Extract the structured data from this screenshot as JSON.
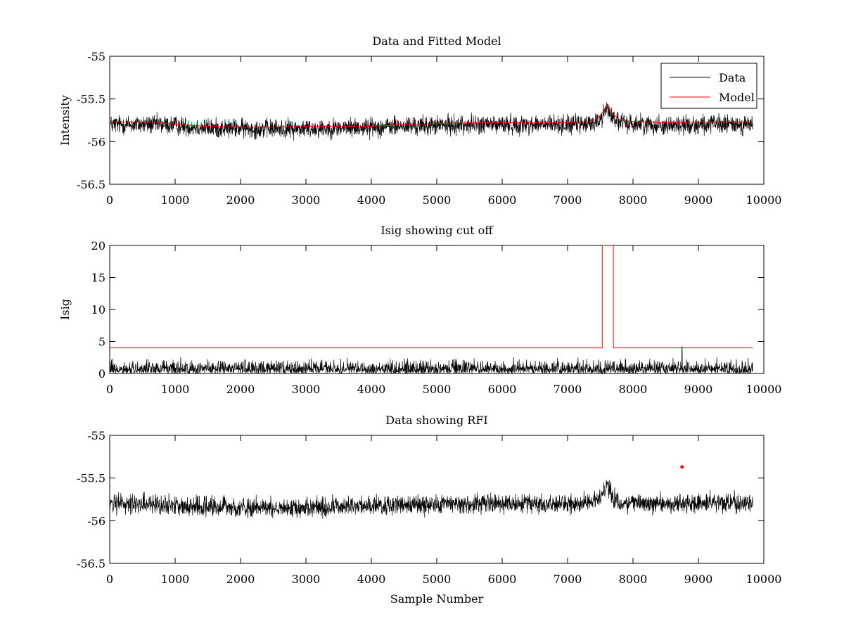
{
  "chart_data": [
    {
      "type": "line",
      "title": "Data and Fitted Model",
      "xlabel": "",
      "ylabel": "Intensity",
      "xlim": [
        0,
        10000
      ],
      "ylim": [
        -56.5,
        -55
      ],
      "xticks": [
        0,
        1000,
        2000,
        3000,
        4000,
        5000,
        6000,
        7000,
        8000,
        9000,
        10000
      ],
      "yticks": [
        -55,
        -55.5,
        -56,
        -56.5
      ],
      "xtick_labels": [
        "0",
        "1000",
        "2000",
        "3000",
        "4000",
        "5000",
        "6000",
        "7000",
        "8000",
        "9000",
        "10000"
      ],
      "ytick_labels": [
        "-55",
        "-55.5",
        "-56",
        "-56.5"
      ],
      "legend": {
        "position": "top-right",
        "entries": [
          {
            "label": "Data",
            "color": "#000000"
          },
          {
            "label": "Model",
            "color": "#ff0000"
          }
        ]
      },
      "series": [
        {
          "name": "Data",
          "color": "#000000",
          "kind": "noise",
          "x_range": [
            0,
            9830
          ],
          "noise_half_range": 0.12,
          "baseline": [
            [
              0,
              -55.8
            ],
            [
              800,
              -55.8
            ],
            [
              1500,
              -55.84
            ],
            [
              2500,
              -55.85
            ],
            [
              3500,
              -55.84
            ],
            [
              4500,
              -55.82
            ],
            [
              5500,
              -55.8
            ],
            [
              6500,
              -55.8
            ],
            [
              7300,
              -55.8
            ],
            [
              7500,
              -55.75
            ],
            [
              7600,
              -55.6
            ],
            [
              7700,
              -55.72
            ],
            [
              7800,
              -55.78
            ],
            [
              8500,
              -55.81
            ],
            [
              9000,
              -55.8
            ],
            [
              9830,
              -55.8
            ]
          ]
        },
        {
          "name": "Model",
          "color": "#ff0000",
          "kind": "line",
          "points": [
            [
              0,
              -55.77
            ],
            [
              600,
              -55.77
            ],
            [
              800,
              -55.78
            ],
            [
              1000,
              -55.8
            ],
            [
              1500,
              -55.82
            ],
            [
              2000,
              -55.83
            ],
            [
              2500,
              -55.83
            ],
            [
              3000,
              -55.82
            ],
            [
              3500,
              -55.82
            ],
            [
              4000,
              -55.82
            ],
            [
              4500,
              -55.8
            ],
            [
              5000,
              -55.79
            ],
            [
              5500,
              -55.78
            ],
            [
              6000,
              -55.78
            ],
            [
              7000,
              -55.78
            ],
            [
              7300,
              -55.77
            ],
            [
              7450,
              -55.74
            ],
            [
              7550,
              -55.64
            ],
            [
              7620,
              -55.57
            ],
            [
              7680,
              -55.66
            ],
            [
              7760,
              -55.73
            ],
            [
              7900,
              -55.76
            ],
            [
              8200,
              -55.77
            ],
            [
              8600,
              -55.78
            ],
            [
              9000,
              -55.77
            ],
            [
              9830,
              -55.77
            ]
          ]
        }
      ]
    },
    {
      "type": "line",
      "title": "Isig showing cut off",
      "xlabel": "",
      "ylabel": "Isig",
      "xlim": [
        0,
        10000
      ],
      "ylim": [
        0,
        20
      ],
      "xticks": [
        0,
        1000,
        2000,
        3000,
        4000,
        5000,
        6000,
        7000,
        8000,
        9000,
        10000
      ],
      "yticks": [
        0,
        5,
        10,
        15,
        20
      ],
      "xtick_labels": [
        "0",
        "1000",
        "2000",
        "3000",
        "4000",
        "5000",
        "6000",
        "7000",
        "8000",
        "9000",
        "10000"
      ],
      "ytick_labels": [
        "0",
        "5",
        "10",
        "15",
        "20"
      ],
      "series": [
        {
          "name": "Isig",
          "color": "#000000",
          "kind": "abs-noise",
          "x_range": [
            0,
            9830
          ],
          "noise_max": 2.8,
          "spikes": [
            [
              8750,
              4.2
            ]
          ]
        },
        {
          "name": "Cut off",
          "color": "#ff0000",
          "kind": "line",
          "points": [
            [
              0,
              4
            ],
            [
              7530,
              4
            ],
            [
              7530,
              20
            ],
            [
              7700,
              20
            ],
            [
              7700,
              4
            ],
            [
              9830,
              4
            ]
          ]
        }
      ]
    },
    {
      "type": "line",
      "title": "Data showing RFI",
      "xlabel": "Sample Number",
      "ylabel": "",
      "xlim": [
        0,
        10000
      ],
      "ylim": [
        -56.5,
        -55
      ],
      "xticks": [
        0,
        1000,
        2000,
        3000,
        4000,
        5000,
        6000,
        7000,
        8000,
        9000,
        10000
      ],
      "yticks": [
        -55,
        -55.5,
        -56,
        -56.5
      ],
      "xtick_labels": [
        "0",
        "1000",
        "2000",
        "3000",
        "4000",
        "5000",
        "6000",
        "7000",
        "8000",
        "9000",
        "10000"
      ],
      "ytick_labels": [
        "-55",
        "-55.5",
        "-56",
        "-56.5"
      ],
      "series": [
        {
          "name": "Data",
          "color": "#000000",
          "kind": "noise",
          "x_range": [
            0,
            9830
          ],
          "noise_half_range": 0.12,
          "baseline": [
            [
              0,
              -55.8
            ],
            [
              800,
              -55.8
            ],
            [
              1500,
              -55.84
            ],
            [
              2500,
              -55.85
            ],
            [
              3500,
              -55.84
            ],
            [
              4500,
              -55.82
            ],
            [
              5500,
              -55.8
            ],
            [
              6500,
              -55.8
            ],
            [
              7300,
              -55.8
            ],
            [
              7500,
              -55.75
            ],
            [
              7600,
              -55.6
            ],
            [
              7700,
              -55.72
            ],
            [
              7800,
              -55.78
            ],
            [
              8500,
              -55.81
            ],
            [
              9000,
              -55.8
            ],
            [
              9830,
              -55.8
            ]
          ]
        },
        {
          "name": "RFI",
          "color": "#ff0000",
          "kind": "marker",
          "points": [
            [
              8750,
              -55.37
            ]
          ]
        }
      ]
    }
  ]
}
